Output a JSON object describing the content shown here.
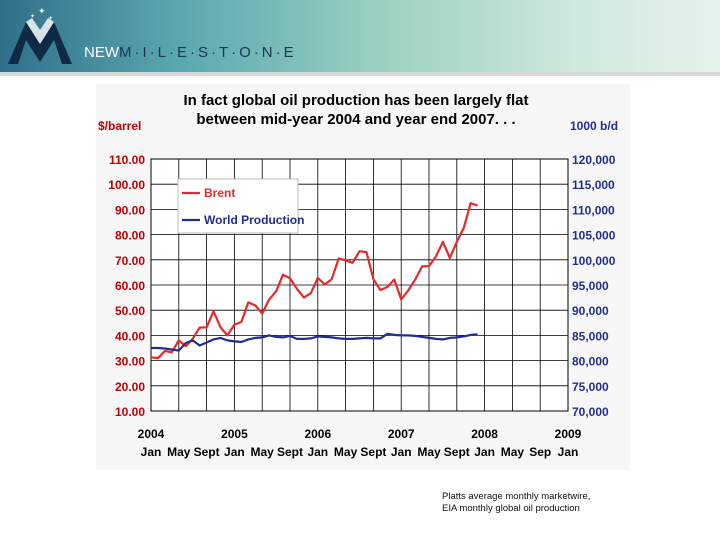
{
  "brand": {
    "prefix": "NEW",
    "name": "M·I·L·E·S·T·O·N·E"
  },
  "source": {
    "line1": "Platts average monthly  marketwire,",
    "line2": "EIA monthly global oil production"
  },
  "chart_data": {
    "type": "line",
    "title_line1": "In fact global oil production has been largely flat",
    "title_line2": "between mid-year 2004 and year end 2007. . .",
    "left_unit": "$/barrel",
    "right_unit": "1000 b/d",
    "yleft_ticks": [
      "110.00",
      "100.00",
      "90.00",
      "80.00",
      "70.00",
      "60.00",
      "50.00",
      "40.00",
      "30.00",
      "20.00",
      "10.00"
    ],
    "yright_ticks": [
      "120,000",
      "115,000",
      "110,000",
      "105,000",
      "100,000",
      "95,000",
      "90,000",
      "85,000",
      "80,000",
      "75,000",
      "70,000"
    ],
    "yleft_lim": [
      10,
      110
    ],
    "yright_lim": [
      70000,
      120000
    ],
    "x_lim": [
      0,
      60
    ],
    "grid": true,
    "legend_position": "top-left",
    "x_years": [
      {
        "label": "2004",
        "m": 0
      },
      {
        "label": "2005",
        "m": 12
      },
      {
        "label": "2006",
        "m": 24
      },
      {
        "label": "2007",
        "m": 36
      },
      {
        "label": "2008",
        "m": 48
      },
      {
        "label": "2009",
        "m": 60
      }
    ],
    "x_months": [
      {
        "label": "Jan",
        "m": 0
      },
      {
        "label": "May",
        "m": 4
      },
      {
        "label": "Sept",
        "m": 8
      },
      {
        "label": "Jan",
        "m": 12
      },
      {
        "label": "May",
        "m": 16
      },
      {
        "label": "Sept",
        "m": 20
      },
      {
        "label": "Jan",
        "m": 24
      },
      {
        "label": "May",
        "m": 28
      },
      {
        "label": "Sept",
        "m": 32
      },
      {
        "label": "Jan",
        "m": 36
      },
      {
        "label": "May",
        "m": 40
      },
      {
        "label": "Sept",
        "m": 44
      },
      {
        "label": "Jan",
        "m": 48
      },
      {
        "label": "May",
        "m": 52
      },
      {
        "label": "Sep",
        "m": 56
      },
      {
        "label": "Jan",
        "m": 60
      }
    ],
    "series": [
      {
        "name": "Brent",
        "axis": "left",
        "color": "#e32b2b",
        "x": [
          0,
          1,
          2,
          3,
          4,
          5,
          6,
          7,
          8,
          9,
          10,
          11,
          12,
          13,
          14,
          15,
          16,
          17,
          18,
          19,
          20,
          21,
          22,
          23,
          24,
          25,
          26,
          27,
          28,
          29,
          30,
          31,
          32,
          33,
          34,
          35,
          36,
          37,
          38,
          39,
          40,
          41,
          42,
          43,
          44,
          45,
          46,
          47
        ],
        "values": [
          31.3,
          31.0,
          33.8,
          33.3,
          38.0,
          35.7,
          38.7,
          43.1,
          43.2,
          49.6,
          43.2,
          40.0,
          44.3,
          45.3,
          53.1,
          51.9,
          48.7,
          54.2,
          57.5,
          64.1,
          62.6,
          58.5,
          55.0,
          56.8,
          62.8,
          60.2,
          62.3,
          70.5,
          69.8,
          68.8,
          73.4,
          73.0,
          62.3,
          58.0,
          59.2,
          62.2,
          54.3,
          57.8,
          62.1,
          67.4,
          67.5,
          71.3,
          77.1,
          70.7,
          77.1,
          82.7,
          92.5,
          91.5
        ]
      },
      {
        "name": "World Production",
        "axis": "right",
        "color": "#1f2f8f",
        "x": [
          0,
          1,
          2,
          3,
          4,
          5,
          6,
          7,
          8,
          9,
          10,
          11,
          12,
          13,
          14,
          15,
          16,
          17,
          18,
          19,
          20,
          21,
          22,
          23,
          24,
          25,
          26,
          27,
          28,
          29,
          30,
          31,
          32,
          33,
          34,
          35,
          36,
          37,
          38,
          39,
          40,
          41,
          42,
          43,
          44,
          45,
          46,
          47
        ],
        "values": [
          82500,
          82500,
          82400,
          82200,
          82000,
          83500,
          84000,
          83000,
          83600,
          84200,
          84500,
          84000,
          83800,
          83700,
          84200,
          84500,
          84600,
          85000,
          84700,
          84600,
          84900,
          84300,
          84300,
          84400,
          84800,
          84700,
          84600,
          84400,
          84300,
          84300,
          84400,
          84500,
          84400,
          84400,
          85300,
          85100,
          85000,
          85000,
          84900,
          84700,
          84500,
          84300,
          84200,
          84500,
          84600,
          84800,
          85100,
          85200
        ]
      }
    ]
  }
}
